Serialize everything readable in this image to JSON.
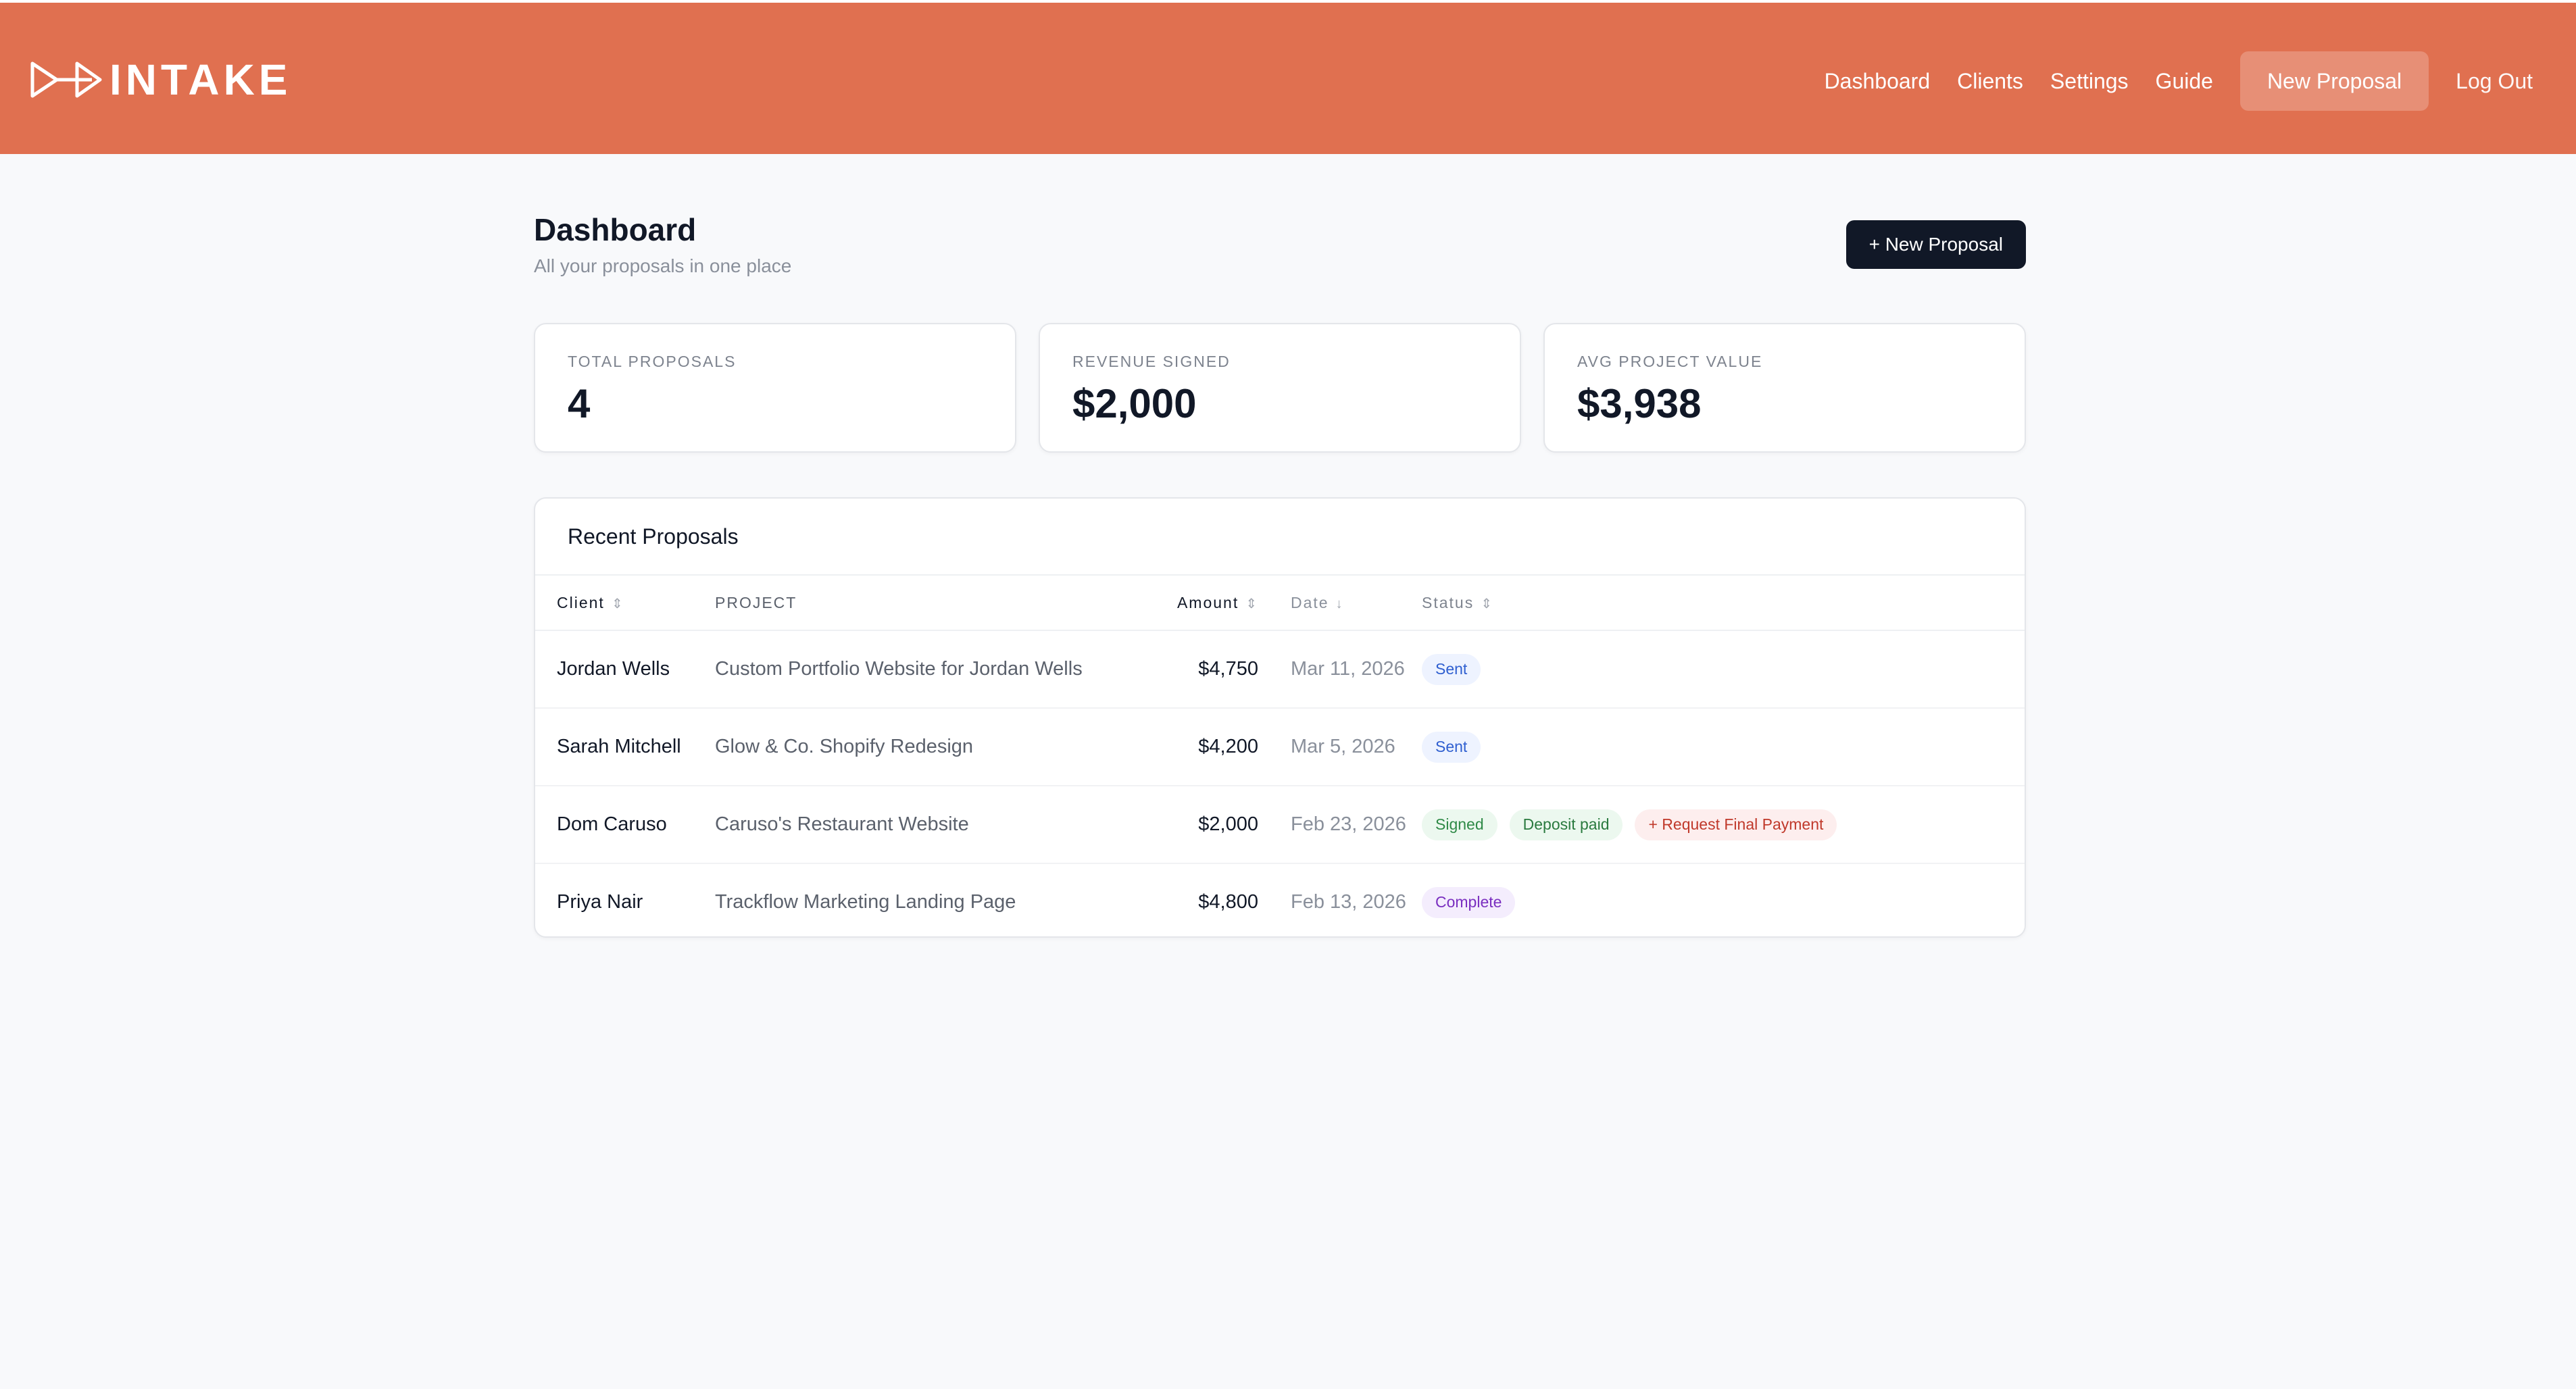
{
  "brand": {
    "name": "INTAKE",
    "accent_color": "#e07050"
  },
  "nav": {
    "links": [
      "Dashboard",
      "Clients",
      "Settings",
      "Guide"
    ],
    "cta": "New Proposal",
    "logout": "Log Out"
  },
  "page": {
    "title": "Dashboard",
    "subtitle": "All your proposals in one place",
    "new_button": "+ New Proposal"
  },
  "stats": [
    {
      "label": "TOTAL PROPOSALS",
      "value": "4"
    },
    {
      "label": "REVENUE SIGNED",
      "value": "$2,000"
    },
    {
      "label": "AVG PROJECT VALUE",
      "value": "$3,938"
    }
  ],
  "proposals": {
    "title": "Recent Proposals",
    "columns": {
      "client": "Client",
      "project": "PROJECT",
      "amount": "Amount",
      "date": "Date",
      "status": "Status"
    },
    "rows": [
      {
        "client": "Jordan Wells",
        "project": "Custom Portfolio Website for Jordan Wells",
        "amount": "$4,750",
        "date": "Mar 11, 2026",
        "status": [
          {
            "text": "Sent",
            "kind": "sent"
          }
        ]
      },
      {
        "client": "Sarah Mitchell",
        "project": "Glow & Co. Shopify Redesign",
        "amount": "$4,200",
        "date": "Mar 5, 2026",
        "status": [
          {
            "text": "Sent",
            "kind": "sent"
          }
        ]
      },
      {
        "client": "Dom Caruso",
        "project": "Caruso's Restaurant Website",
        "amount": "$2,000",
        "date": "Feb 23, 2026",
        "status": [
          {
            "text": "Signed",
            "kind": "signed"
          },
          {
            "text": "Deposit paid",
            "kind": "deposit"
          },
          {
            "text": "+ Request Final Payment",
            "kind": "request"
          }
        ]
      },
      {
        "client": "Priya Nair",
        "project": "Trackflow Marketing Landing Page",
        "amount": "$4,800",
        "date": "Feb 13, 2026",
        "status": [
          {
            "text": "Complete",
            "kind": "complete"
          }
        ]
      }
    ]
  }
}
